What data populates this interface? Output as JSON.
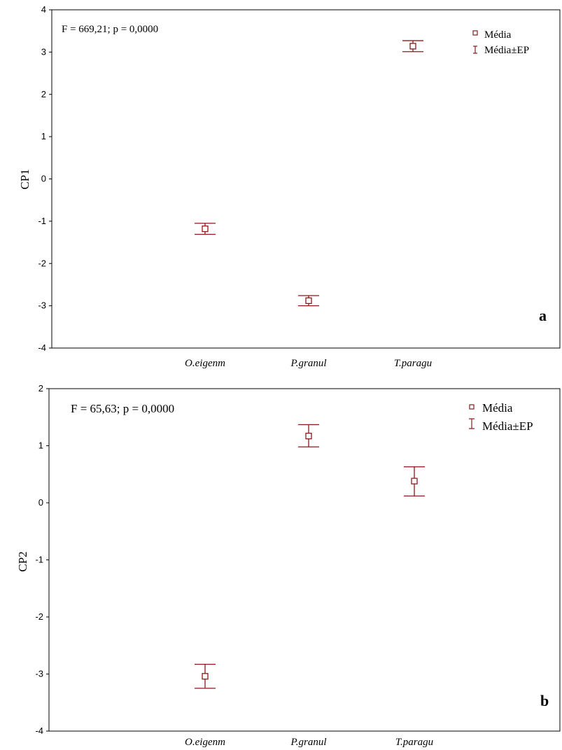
{
  "chart_data": [
    {
      "type": "scatter",
      "panel_label": "a",
      "annotation": "F = 669,21; p = 0,0000",
      "title": "",
      "xlabel": "",
      "ylabel": "CP1",
      "ylim": [
        -4,
        4
      ],
      "y_ticks": [
        4,
        3,
        2,
        1,
        0,
        -1,
        -2,
        -3,
        -4
      ],
      "categories": [
        "O.eigenm",
        "P.granul",
        "T.paragu"
      ],
      "mean": [
        -1.18,
        -2.88,
        3.14
      ],
      "se_low": [
        -1.31,
        -3.0,
        3.01
      ],
      "se_high": [
        -1.05,
        -2.76,
        3.27
      ],
      "grid": false,
      "legend": {
        "placement": "top-right",
        "entries": [
          "Média",
          "Média±EP"
        ]
      },
      "marker_color": "#8b1a1a"
    },
    {
      "type": "scatter",
      "panel_label": "b",
      "annotation": "F = 65,63; p = 0,0000",
      "title": "",
      "xlabel": "",
      "ylabel": "CP2",
      "ylim": [
        -4,
        2
      ],
      "y_ticks": [
        2,
        1,
        0,
        -1,
        -2,
        -3,
        -4
      ],
      "categories": [
        "O.eigenm",
        "P.granul",
        "T.paragu"
      ],
      "mean": [
        -3.04,
        1.17,
        0.38
      ],
      "se_low": [
        -3.25,
        0.98,
        0.12
      ],
      "se_high": [
        -2.83,
        1.37,
        0.63
      ],
      "grid": false,
      "legend": {
        "placement": "top-right",
        "entries": [
          "Média",
          "Média±EP"
        ]
      },
      "marker_color": "#8b1a1a"
    }
  ]
}
